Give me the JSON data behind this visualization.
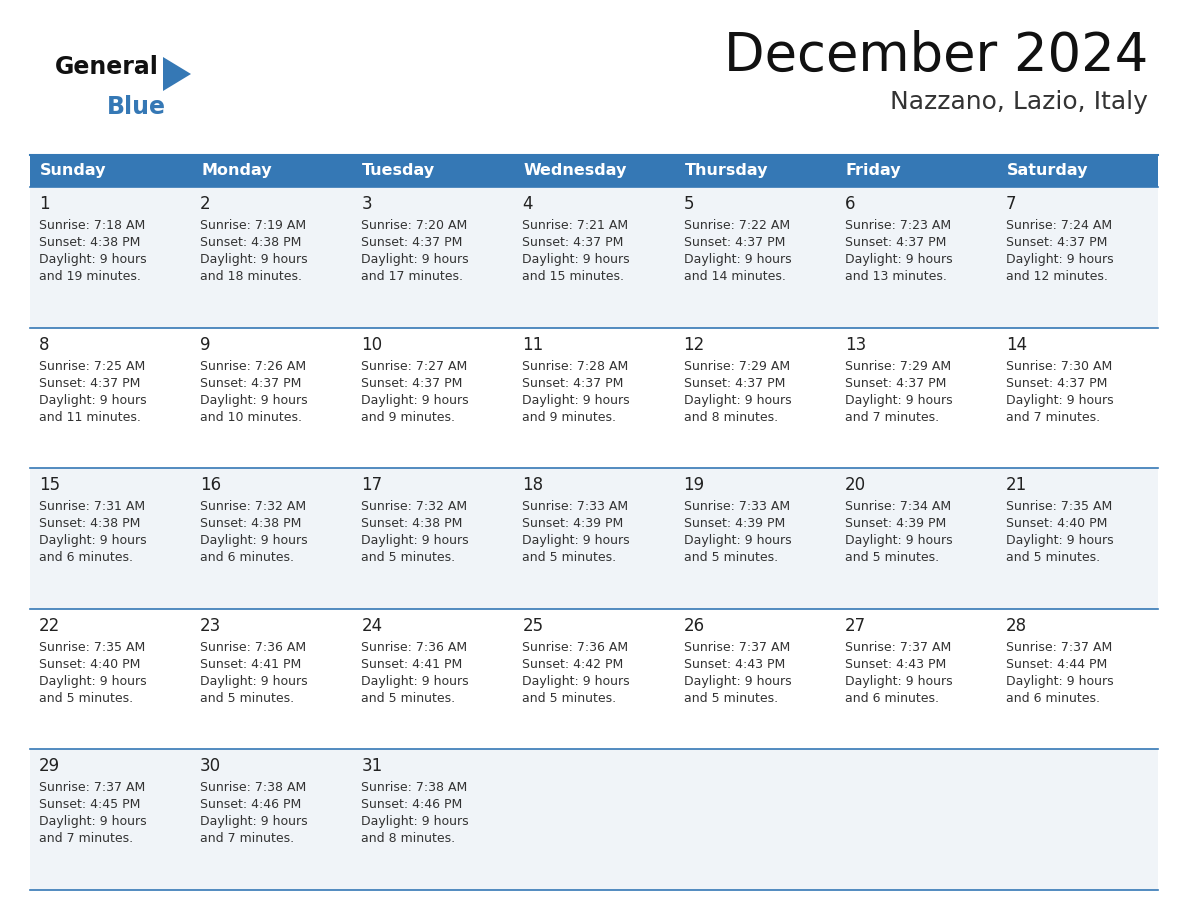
{
  "title": "December 2024",
  "subtitle": "Nazzano, Lazio, Italy",
  "header_color": "#3578b5",
  "header_text_color": "#ffffff",
  "bg_color": "#ffffff",
  "row_colors": [
    "#f0f4f8",
    "#ffffff",
    "#f0f4f8",
    "#ffffff",
    "#f0f4f8"
  ],
  "border_color": "#3578b5",
  "text_color": "#222222",
  "days_of_week": [
    "Sunday",
    "Monday",
    "Tuesday",
    "Wednesday",
    "Thursday",
    "Friday",
    "Saturday"
  ],
  "calendar_data": [
    [
      {
        "day": "1",
        "sunrise": "7:18 AM",
        "sunset": "4:38 PM",
        "dl1": "9 hours",
        "dl2": "and 19 minutes."
      },
      {
        "day": "2",
        "sunrise": "7:19 AM",
        "sunset": "4:38 PM",
        "dl1": "9 hours",
        "dl2": "and 18 minutes."
      },
      {
        "day": "3",
        "sunrise": "7:20 AM",
        "sunset": "4:37 PM",
        "dl1": "9 hours",
        "dl2": "and 17 minutes."
      },
      {
        "day": "4",
        "sunrise": "7:21 AM",
        "sunset": "4:37 PM",
        "dl1": "9 hours",
        "dl2": "and 15 minutes."
      },
      {
        "day": "5",
        "sunrise": "7:22 AM",
        "sunset": "4:37 PM",
        "dl1": "9 hours",
        "dl2": "and 14 minutes."
      },
      {
        "day": "6",
        "sunrise": "7:23 AM",
        "sunset": "4:37 PM",
        "dl1": "9 hours",
        "dl2": "and 13 minutes."
      },
      {
        "day": "7",
        "sunrise": "7:24 AM",
        "sunset": "4:37 PM",
        "dl1": "9 hours",
        "dl2": "and 12 minutes."
      }
    ],
    [
      {
        "day": "8",
        "sunrise": "7:25 AM",
        "sunset": "4:37 PM",
        "dl1": "9 hours",
        "dl2": "and 11 minutes."
      },
      {
        "day": "9",
        "sunrise": "7:26 AM",
        "sunset": "4:37 PM",
        "dl1": "9 hours",
        "dl2": "and 10 minutes."
      },
      {
        "day": "10",
        "sunrise": "7:27 AM",
        "sunset": "4:37 PM",
        "dl1": "9 hours",
        "dl2": "and 9 minutes."
      },
      {
        "day": "11",
        "sunrise": "7:28 AM",
        "sunset": "4:37 PM",
        "dl1": "9 hours",
        "dl2": "and 9 minutes."
      },
      {
        "day": "12",
        "sunrise": "7:29 AM",
        "sunset": "4:37 PM",
        "dl1": "9 hours",
        "dl2": "and 8 minutes."
      },
      {
        "day": "13",
        "sunrise": "7:29 AM",
        "sunset": "4:37 PM",
        "dl1": "9 hours",
        "dl2": "and 7 minutes."
      },
      {
        "day": "14",
        "sunrise": "7:30 AM",
        "sunset": "4:37 PM",
        "dl1": "9 hours",
        "dl2": "and 7 minutes."
      }
    ],
    [
      {
        "day": "15",
        "sunrise": "7:31 AM",
        "sunset": "4:38 PM",
        "dl1": "9 hours",
        "dl2": "and 6 minutes."
      },
      {
        "day": "16",
        "sunrise": "7:32 AM",
        "sunset": "4:38 PM",
        "dl1": "9 hours",
        "dl2": "and 6 minutes."
      },
      {
        "day": "17",
        "sunrise": "7:32 AM",
        "sunset": "4:38 PM",
        "dl1": "9 hours",
        "dl2": "and 5 minutes."
      },
      {
        "day": "18",
        "sunrise": "7:33 AM",
        "sunset": "4:39 PM",
        "dl1": "9 hours",
        "dl2": "and 5 minutes."
      },
      {
        "day": "19",
        "sunrise": "7:33 AM",
        "sunset": "4:39 PM",
        "dl1": "9 hours",
        "dl2": "and 5 minutes."
      },
      {
        "day": "20",
        "sunrise": "7:34 AM",
        "sunset": "4:39 PM",
        "dl1": "9 hours",
        "dl2": "and 5 minutes."
      },
      {
        "day": "21",
        "sunrise": "7:35 AM",
        "sunset": "4:40 PM",
        "dl1": "9 hours",
        "dl2": "and 5 minutes."
      }
    ],
    [
      {
        "day": "22",
        "sunrise": "7:35 AM",
        "sunset": "4:40 PM",
        "dl1": "9 hours",
        "dl2": "and 5 minutes."
      },
      {
        "day": "23",
        "sunrise": "7:36 AM",
        "sunset": "4:41 PM",
        "dl1": "9 hours",
        "dl2": "and 5 minutes."
      },
      {
        "day": "24",
        "sunrise": "7:36 AM",
        "sunset": "4:41 PM",
        "dl1": "9 hours",
        "dl2": "and 5 minutes."
      },
      {
        "day": "25",
        "sunrise": "7:36 AM",
        "sunset": "4:42 PM",
        "dl1": "9 hours",
        "dl2": "and 5 minutes."
      },
      {
        "day": "26",
        "sunrise": "7:37 AM",
        "sunset": "4:43 PM",
        "dl1": "9 hours",
        "dl2": "and 5 minutes."
      },
      {
        "day": "27",
        "sunrise": "7:37 AM",
        "sunset": "4:43 PM",
        "dl1": "9 hours",
        "dl2": "and 6 minutes."
      },
      {
        "day": "28",
        "sunrise": "7:37 AM",
        "sunset": "4:44 PM",
        "dl1": "9 hours",
        "dl2": "and 6 minutes."
      }
    ],
    [
      {
        "day": "29",
        "sunrise": "7:37 AM",
        "sunset": "4:45 PM",
        "dl1": "9 hours",
        "dl2": "and 7 minutes."
      },
      {
        "day": "30",
        "sunrise": "7:38 AM",
        "sunset": "4:46 PM",
        "dl1": "9 hours",
        "dl2": "and 7 minutes."
      },
      {
        "day": "31",
        "sunrise": "7:38 AM",
        "sunset": "4:46 PM",
        "dl1": "9 hours",
        "dl2": "and 8 minutes."
      },
      null,
      null,
      null,
      null
    ]
  ]
}
